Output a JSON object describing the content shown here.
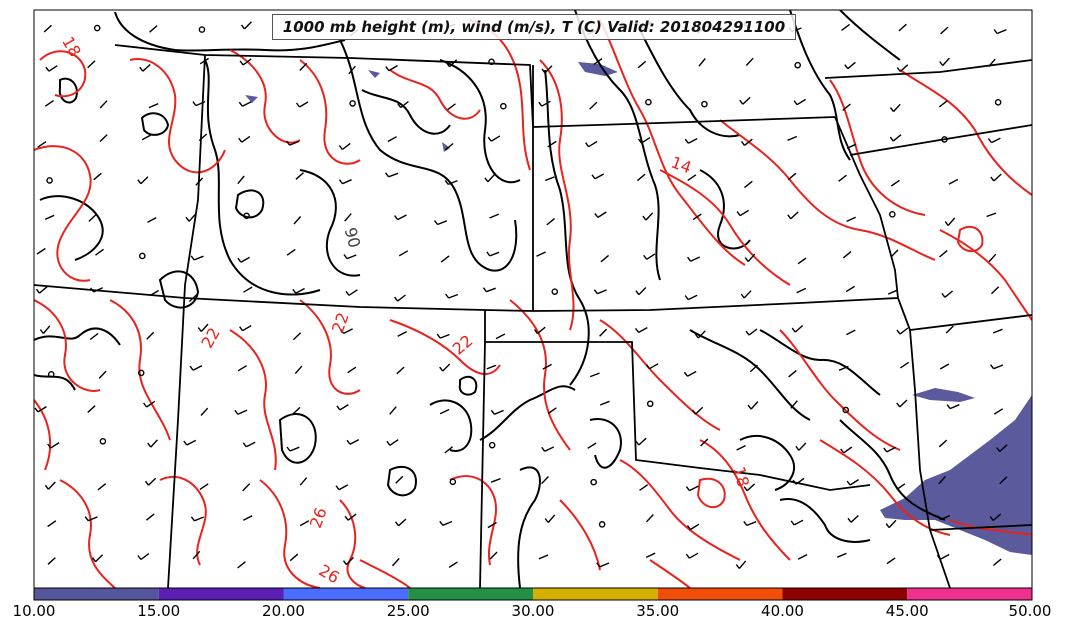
{
  "map": {
    "title": "1000 mb height (m), wind (m/s), T (C) Valid: 201804291100",
    "temperature_contour_labels": [
      "18",
      "14",
      "18",
      "22",
      "22",
      "22",
      "26",
      "26",
      "18"
    ],
    "height_contour_label": "90",
    "colors": {
      "temperature_contour": "#e8231d",
      "height_contour": "#000000",
      "state_border": "#000000",
      "precip_fill": "#5a5a9c"
    }
  },
  "colorbar": {
    "ticks": [
      "10.00",
      "15.00",
      "20.00",
      "25.00",
      "30.00",
      "35.00",
      "40.00",
      "45.00",
      "50.00"
    ],
    "colors": [
      "#56569c",
      "#5b1fb5",
      "#4a6cff",
      "#239046",
      "#d6b000",
      "#f24e0a",
      "#8e0000",
      "#f0308e"
    ]
  }
}
